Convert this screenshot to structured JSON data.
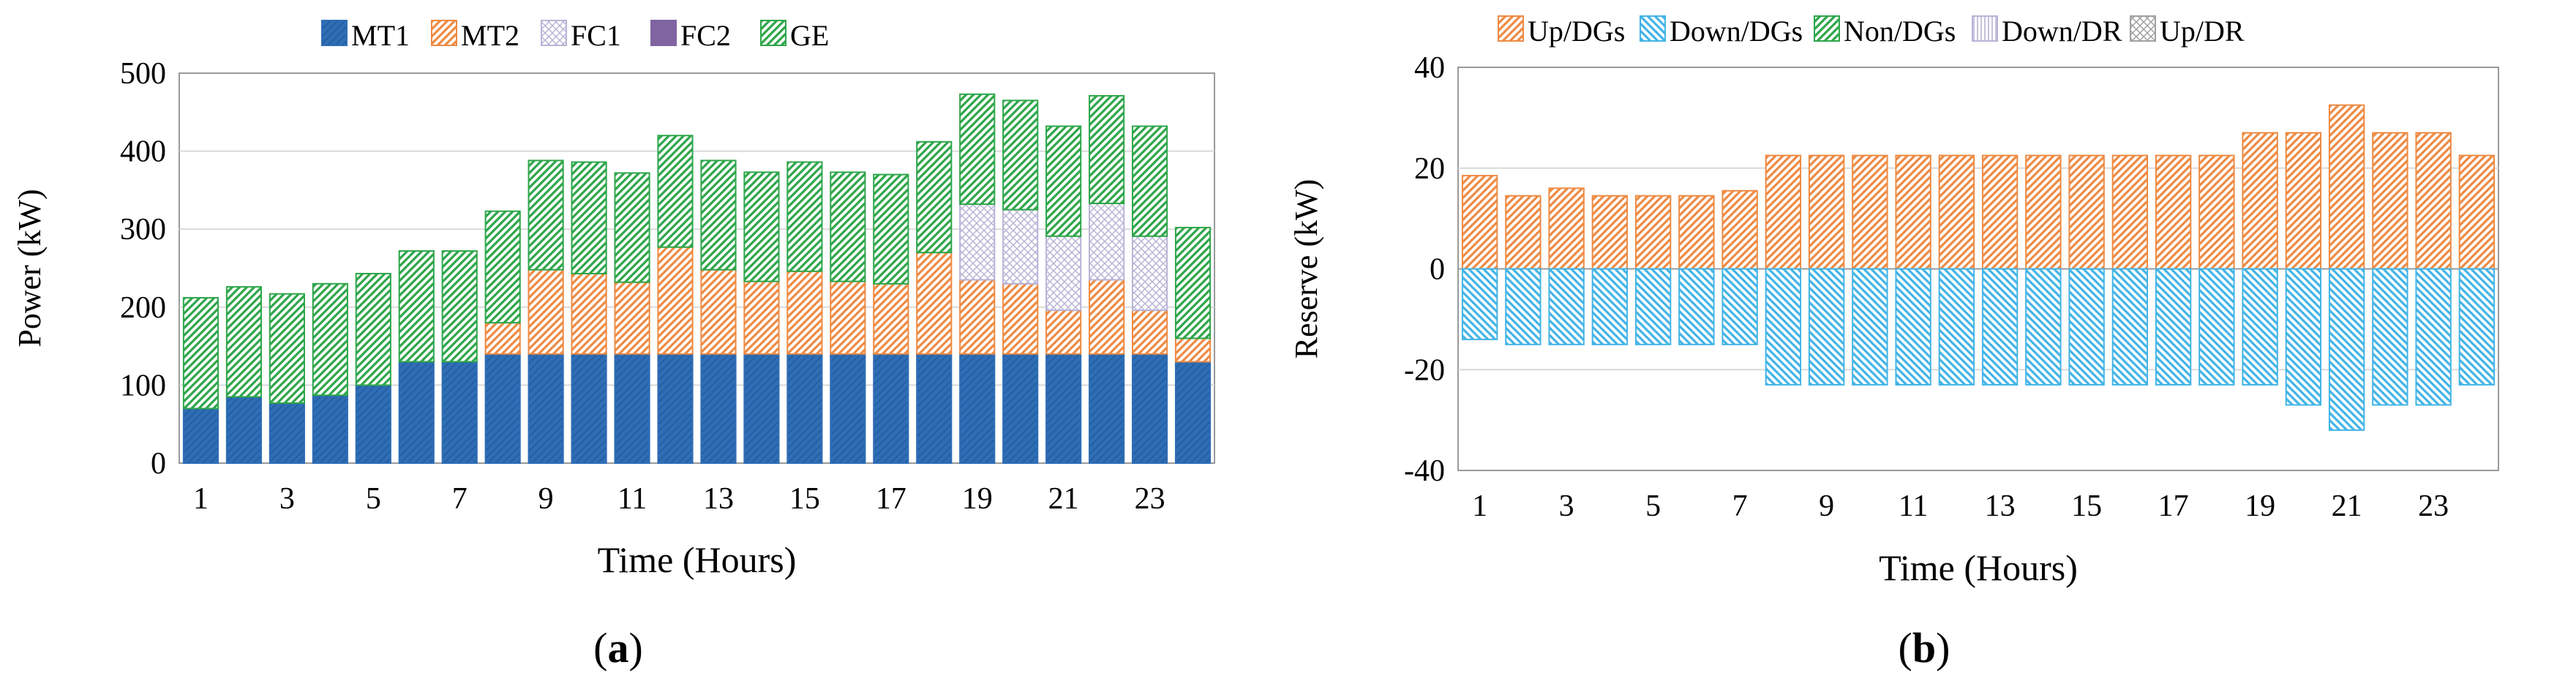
{
  "chart_data": [
    {
      "type": "bar",
      "stacked": true,
      "panel_label": "(a)",
      "panel_letter": "a",
      "title": "",
      "xlabel": "Time (Hours)",
      "ylabel": "Power (kW)",
      "ylim": [
        0,
        500
      ],
      "yticks": [
        0,
        100,
        200,
        300,
        400,
        500
      ],
      "categories": [
        1,
        2,
        3,
        4,
        5,
        6,
        7,
        8,
        9,
        10,
        11,
        12,
        13,
        14,
        15,
        16,
        17,
        18,
        19,
        20,
        21,
        22,
        23,
        24
      ],
      "xtick_labels": [
        "1",
        "3",
        "5",
        "7",
        "9",
        "11",
        "13",
        "15",
        "17",
        "19",
        "21",
        "23"
      ],
      "legend_position": "top",
      "series": [
        {
          "name": "MT1",
          "color": "#2f6db5",
          "pattern": "solid-fine-diagonal",
          "values": [
            70,
            85,
            77,
            87,
            100,
            130,
            130,
            140,
            140,
            140,
            140,
            140,
            140,
            140,
            140,
            140,
            140,
            140,
            140,
            140,
            140,
            140,
            140,
            130
          ]
        },
        {
          "name": "MT2",
          "color": "#ee8a42",
          "pattern": "diagonal",
          "values": [
            0,
            0,
            0,
            0,
            0,
            0,
            0,
            40,
            108,
            103,
            92,
            137,
            108,
            93,
            106,
            93,
            90,
            130,
            95,
            90,
            56,
            95,
            56,
            30
          ]
        },
        {
          "name": "FC1",
          "color": "#b9b4d6",
          "pattern": "crosshatch",
          "values": [
            0,
            0,
            0,
            0,
            0,
            0,
            0,
            0,
            0,
            0,
            0,
            0,
            0,
            0,
            0,
            0,
            0,
            0,
            97,
            95,
            95,
            98,
            95,
            0
          ]
        },
        {
          "name": "FC2",
          "color": "#8064a2",
          "pattern": "solid",
          "values": [
            0,
            0,
            0,
            0,
            0,
            0,
            0,
            0,
            0,
            0,
            0,
            0,
            0,
            0,
            0,
            0,
            0,
            0,
            0,
            0,
            0,
            0,
            0,
            0
          ]
        },
        {
          "name": "GE",
          "color": "#2ea64a",
          "pattern": "diagonal",
          "values": [
            142,
            141,
            140,
            143,
            143,
            142,
            142,
            143,
            140,
            143,
            140,
            143,
            140,
            140,
            140,
            140,
            140,
            142,
            141,
            140,
            141,
            138,
            141,
            142
          ]
        }
      ]
    },
    {
      "type": "bar",
      "stacked": true,
      "panel_label": "(b)",
      "panel_letter": "b",
      "title": "",
      "xlabel": "Time (Hours)",
      "ylabel": "Reserve (kW)",
      "ylim": [
        -40,
        40
      ],
      "yticks": [
        -40,
        -20,
        0,
        20,
        40
      ],
      "categories": [
        1,
        2,
        3,
        4,
        5,
        6,
        7,
        8,
        9,
        10,
        11,
        12,
        13,
        14,
        15,
        16,
        17,
        18,
        19,
        20,
        21,
        22,
        23,
        24
      ],
      "xtick_labels": [
        "1",
        "3",
        "5",
        "7",
        "9",
        "11",
        "13",
        "15",
        "17",
        "19",
        "21",
        "23"
      ],
      "legend_position": "top",
      "series": [
        {
          "name": "Up/DGs",
          "color": "#ee8a42",
          "pattern": "diagonal",
          "values": [
            18.5,
            14.5,
            16,
            14.5,
            14.5,
            14.5,
            15.5,
            22.5,
            22.5,
            22.5,
            22.5,
            22.5,
            22.5,
            22.5,
            22.5,
            22.5,
            22.5,
            22.5,
            27,
            27,
            32.5,
            27,
            27,
            22.5
          ]
        },
        {
          "name": "Down/DGs",
          "color": "#42b4e6",
          "pattern": "diagonal-back",
          "values": [
            -14,
            -15,
            -15,
            -15,
            -15,
            -15,
            -15,
            -23,
            -23,
            -23,
            -23,
            -23,
            -23,
            -23,
            -23,
            -23,
            -23,
            -23,
            -23,
            -27,
            -32,
            -27,
            -27,
            -23
          ]
        },
        {
          "name": "Non/DGs",
          "color": "#2ea64a",
          "pattern": "diagonal",
          "values": [
            0,
            0,
            0,
            0,
            0,
            0,
            0,
            0,
            0,
            0,
            0,
            0,
            0,
            0,
            0,
            0,
            0,
            0,
            0,
            0,
            0,
            0,
            0,
            0
          ]
        },
        {
          "name": "Down/DR",
          "color": "#b9b4d6",
          "pattern": "vertical",
          "values": [
            0,
            0,
            0,
            0,
            0,
            0,
            0,
            0,
            0,
            0,
            0,
            0,
            0,
            0,
            0,
            0,
            0,
            0,
            0,
            0,
            0,
            0,
            0,
            0
          ]
        },
        {
          "name": "Up/DR",
          "color": "#a0a0a0",
          "pattern": "crosshatch",
          "values": [
            0,
            0,
            0,
            0,
            0,
            0,
            0,
            0,
            0,
            0,
            0,
            0,
            0,
            0,
            0,
            0,
            0,
            0,
            0,
            0,
            0,
            0,
            0,
            0
          ]
        }
      ]
    }
  ]
}
